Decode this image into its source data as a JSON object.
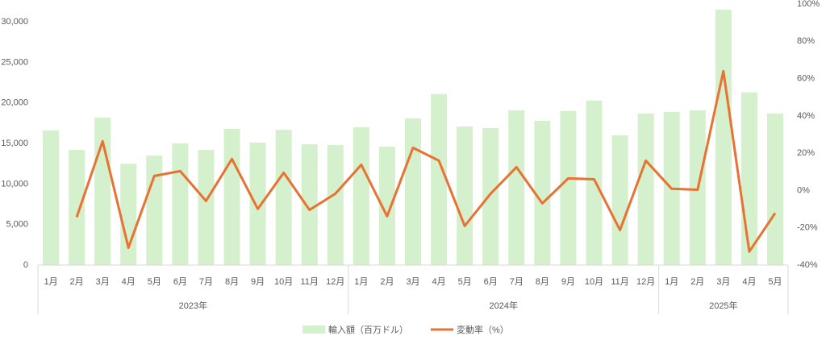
{
  "chart_data": {
    "type": "bar-line",
    "category_groups": [
      {
        "label": "2023年",
        "categories": [
          "1月",
          "2月",
          "3月",
          "4月",
          "5月",
          "6月",
          "7月",
          "8月",
          "9月",
          "10月",
          "11月",
          "12月"
        ]
      },
      {
        "label": "2024年",
        "categories": [
          "1月",
          "2月",
          "3月",
          "4月",
          "5月",
          "6月",
          "7月",
          "8月",
          "9月",
          "10月",
          "11月",
          "12月"
        ]
      },
      {
        "label": "2025年",
        "categories": [
          "1月",
          "2月",
          "3月",
          "4月",
          "5月"
        ]
      }
    ],
    "series": [
      {
        "name": "輸入額（百万ドル）",
        "type": "bar",
        "color": "#d5f0cc",
        "values": [
          16600,
          14200,
          18200,
          12500,
          13500,
          15000,
          14200,
          16800,
          15100,
          16700,
          14900,
          14800,
          17000,
          14600,
          18100,
          21100,
          17100,
          16900,
          19100,
          17800,
          19000,
          20300,
          16000,
          18700,
          18900,
          19100,
          31500,
          21300,
          18700
        ]
      },
      {
        "name": "変動率（%）",
        "type": "line",
        "axis": "y2",
        "color": "#e97132",
        "values": [
          null,
          -14.3,
          26.4,
          -30.7,
          7.8,
          10.4,
          -5.6,
          16.9,
          -9.9,
          9.5,
          -10.4,
          -1.7,
          13.8,
          -13.8,
          22.9,
          16.0,
          -19.0,
          -1.7,
          12.5,
          -6.9,
          6.5,
          6.0,
          -21.2,
          16.0,
          0.9,
          0.4,
          64.0,
          -32.8,
          -12.1
        ]
      }
    ],
    "ylim": [
      0,
      32200
    ],
    "yticks": [
      0,
      {
        "value": 5000,
        "label": "5,000"
      },
      {
        "value": 10000,
        "label": "10,000"
      },
      {
        "value": 15000,
        "label": "15,000"
      },
      {
        "value": 20000,
        "label": "20,000"
      },
      {
        "value": 25000,
        "label": "25,000"
      },
      {
        "value": 30000,
        "label": "30,000"
      }
    ],
    "y2lim": [
      -40,
      100
    ],
    "y2ticks": [
      {
        "value": -40,
        "label": "-40%"
      },
      {
        "value": -20,
        "label": "-20%"
      },
      {
        "value": 0,
        "label": "0%"
      },
      {
        "value": 20,
        "label": "20%"
      },
      {
        "value": 40,
        "label": "40%"
      },
      {
        "value": 60,
        "label": "60%"
      },
      {
        "value": 80,
        "label": "80%"
      },
      {
        "value": 100,
        "label": "100%"
      }
    ],
    "grid": false,
    "legend": "bottom"
  }
}
